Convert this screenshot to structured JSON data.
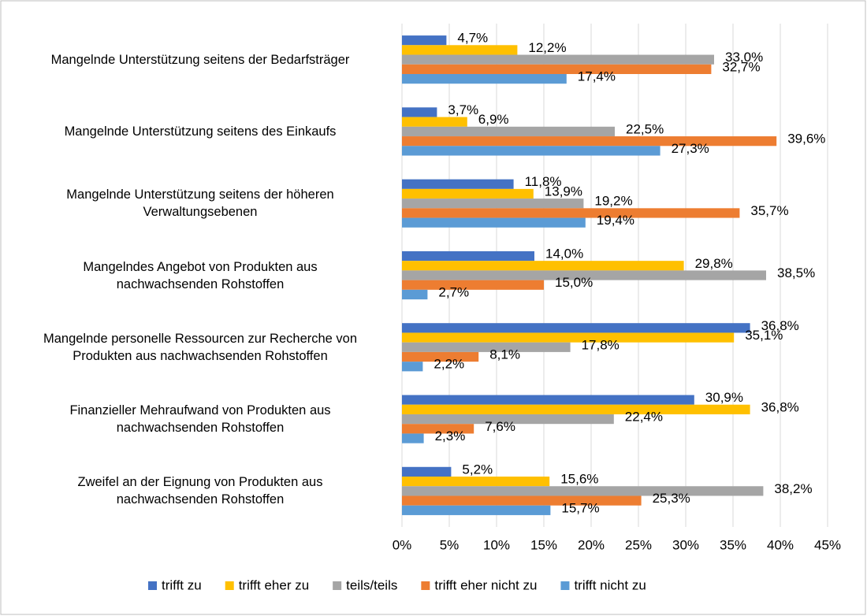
{
  "chart_data": {
    "type": "bar",
    "orientation": "horizontal",
    "categories": [
      "Mangelnde Unterstützung seitens der Bedarfsträger",
      "Mangelnde Unterstützung seitens des Einkaufs",
      "Mangelnde Unterstützung seitens der höheren\nVerwaltungsebenen",
      "Mangelndes Angebot von Produkten aus\nnachwachsenden Rohstoffen",
      "Mangelnde personelle Ressourcen zur Recherche von\nProdukten aus nachwachsenden Rohstoffen",
      "Finanzieller Mehraufwand von Produkten aus\nnachwachsenden Rohstoffen",
      "Zweifel an der Eignung von Produkten aus\nnachwachsenden Rohstoffen"
    ],
    "series": [
      {
        "name": "trifft zu",
        "color": "#4472c4",
        "values": [
          4.7,
          3.7,
          11.8,
          14.0,
          36.8,
          30.9,
          5.2
        ],
        "value_labels": [
          "4,7%",
          "3,7%",
          "11,8%",
          "14,0%",
          "36,8%",
          "30,9%",
          "5,2%"
        ]
      },
      {
        "name": "trifft eher zu",
        "color": "#ffc000",
        "values": [
          12.2,
          6.9,
          13.9,
          29.8,
          35.1,
          36.8,
          15.6
        ],
        "value_labels": [
          "12,2%",
          "6,9%",
          "13,9%",
          "29,8%",
          "35,1%",
          "36,8%",
          "15,6%"
        ]
      },
      {
        "name": "teils/teils",
        "color": "#a5a5a5",
        "values": [
          33.0,
          22.5,
          19.2,
          38.5,
          17.8,
          22.4,
          38.2
        ],
        "value_labels": [
          "33,0%",
          "22,5%",
          "19,2%",
          "38,5%",
          "17,8%",
          "22,4%",
          "38,2%"
        ]
      },
      {
        "name": "trifft eher nicht zu",
        "color": "#ed7d31",
        "values": [
          32.7,
          39.6,
          35.7,
          15.0,
          8.1,
          7.6,
          25.3
        ],
        "value_labels": [
          "32,7%",
          "39,6%",
          "35,7%",
          "15,0%",
          "8,1%",
          "7,6%",
          "25,3%"
        ]
      },
      {
        "name": "trifft nicht zu",
        "color": "#5b9bd5",
        "values": [
          17.4,
          27.3,
          19.4,
          2.7,
          2.2,
          2.3,
          15.7
        ],
        "value_labels": [
          "17,4%",
          "27,3%",
          "19,4%",
          "2,7%",
          "2,2%",
          "2,3%",
          "15,7%"
        ]
      }
    ],
    "xlim": [
      0,
      45
    ],
    "xticks": [
      {
        "value": 0,
        "label": "0%"
      },
      {
        "value": 5,
        "label": "5%"
      },
      {
        "value": 10,
        "label": "10%"
      },
      {
        "value": 15,
        "label": "15%"
      },
      {
        "value": 20,
        "label": "20%"
      },
      {
        "value": 25,
        "label": "25%"
      },
      {
        "value": 30,
        "label": "30%"
      },
      {
        "value": 35,
        "label": "35%"
      },
      {
        "value": 40,
        "label": "40%"
      },
      {
        "value": 45,
        "label": "45%"
      }
    ],
    "grid": true,
    "legend": "bottom"
  }
}
